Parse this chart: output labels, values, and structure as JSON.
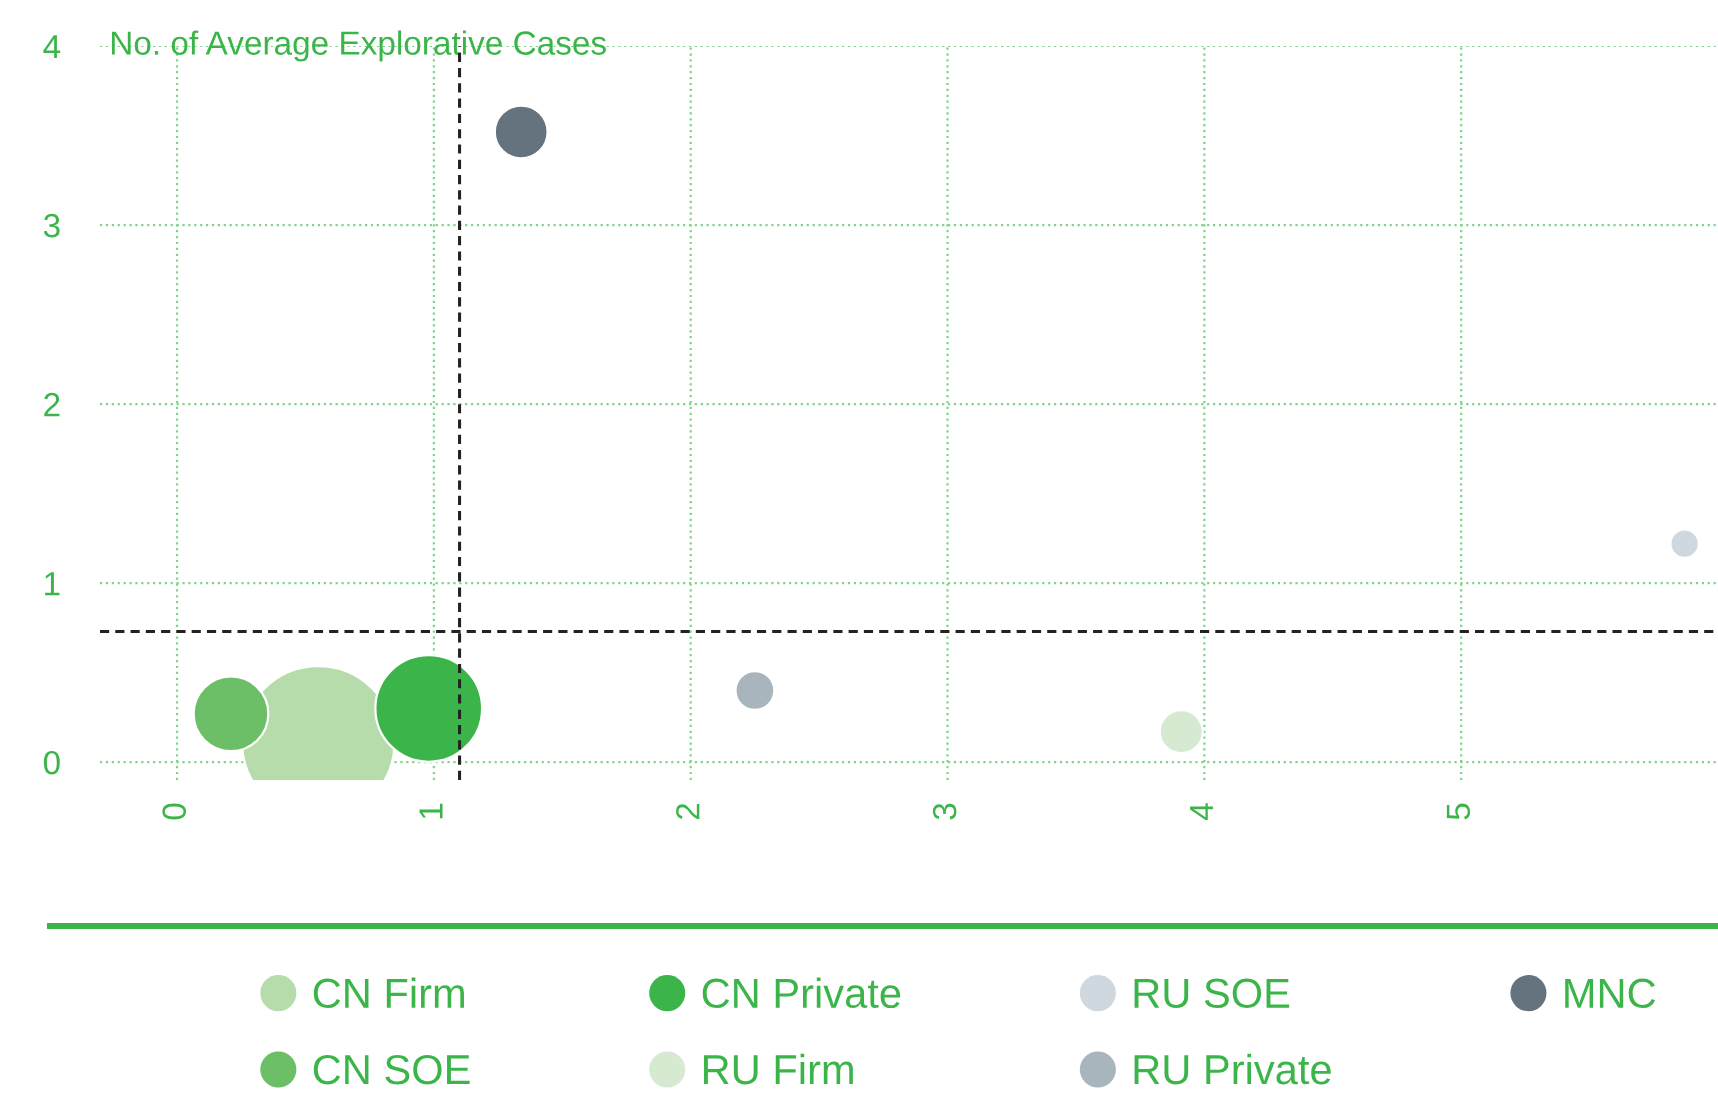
{
  "chart_data": {
    "type": "bubble",
    "ylabel": "No. of Average Explorative Cases",
    "series": [
      {
        "name": "CN Firm",
        "color": "#b5dcaa",
        "x": [
          0.55
        ],
        "values": [
          0.11
        ],
        "sizes": [
          1
        ]
      },
      {
        "name": "CN SOE",
        "color": "#6dbf67",
        "x": [
          0.21
        ],
        "values": [
          0.27
        ],
        "sizes": [
          0.24
        ]
      },
      {
        "name": "CN Private",
        "color": "#3bb54a",
        "x": [
          0.98
        ],
        "values": [
          0.3
        ],
        "sizes": [
          0.49
        ]
      },
      {
        "name": "RU Firm",
        "color": "#d6ead2",
        "x": [
          3.91
        ],
        "values": [
          0.17
        ],
        "sizes": [
          0.08
        ]
      },
      {
        "name": "RU SOE",
        "color": "#d0d8df",
        "x": [
          5.87
        ],
        "values": [
          1.22
        ],
        "sizes": [
          0.035
        ]
      },
      {
        "name": "RU Private",
        "color": "#a8b5bd",
        "x": [
          2.25
        ],
        "values": [
          0.4
        ],
        "sizes": [
          0.065
        ]
      },
      {
        "name": "MNC",
        "color": "#64737e",
        "x": [
          1.34
        ],
        "values": [
          3.52
        ],
        "sizes": [
          0.12
        ]
      }
    ],
    "xlim": [
      -0.3,
      6.0
    ],
    "ylim": [
      -0.1,
      4
    ],
    "xticks": [
      0,
      1,
      2,
      3,
      4,
      5
    ],
    "yticks": [
      0,
      1,
      2,
      3,
      4
    ],
    "ref_lines": [
      {
        "axis": "x",
        "value": 1.1,
        "color": "#222222",
        "line_style": "dashed"
      },
      {
        "axis": "y",
        "value": 0.73,
        "color": "#222222",
        "line_style": "dashed"
      }
    ],
    "grid": true,
    "legend": "bottom"
  }
}
